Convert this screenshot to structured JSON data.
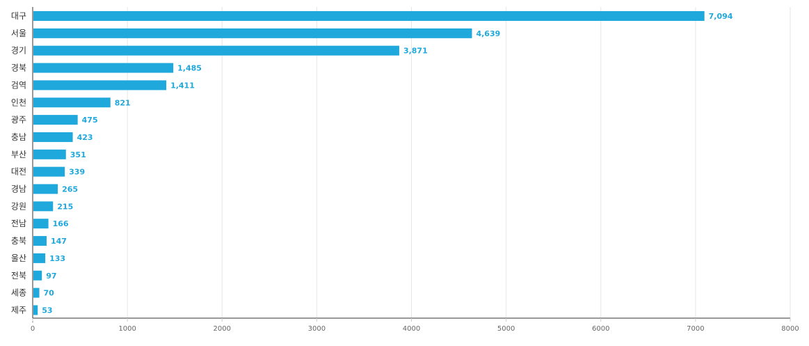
{
  "chart_data": {
    "type": "bar",
    "orientation": "horizontal",
    "categories": [
      "대구",
      "서울",
      "경기",
      "경북",
      "검역",
      "인천",
      "광주",
      "충남",
      "부산",
      "대전",
      "경남",
      "강원",
      "전남",
      "충북",
      "울산",
      "전북",
      "세종",
      "제주"
    ],
    "values": [
      7094,
      4639,
      3871,
      1485,
      1411,
      821,
      475,
      423,
      351,
      339,
      265,
      215,
      166,
      147,
      133,
      97,
      70,
      53
    ],
    "value_labels": [
      "7,094",
      "4,639",
      "3,871",
      "1,485",
      "1,411",
      "821",
      "475",
      "423",
      "351",
      "339",
      "265",
      "215",
      "166",
      "147",
      "133",
      "97",
      "70",
      "53"
    ],
    "xlim": [
      0,
      8000
    ],
    "xticks": [
      0,
      1000,
      2000,
      3000,
      4000,
      5000,
      6000,
      7000,
      8000
    ],
    "xtick_labels": [
      "0",
      "1000",
      "2000",
      "3000",
      "4000",
      "5000",
      "6000",
      "7000",
      "8000"
    ],
    "title": "",
    "xlabel": "",
    "ylabel": "",
    "grid": true,
    "legend": false,
    "bar_color": "#1fa8dc",
    "value_label_color": "#1fa8dc"
  }
}
